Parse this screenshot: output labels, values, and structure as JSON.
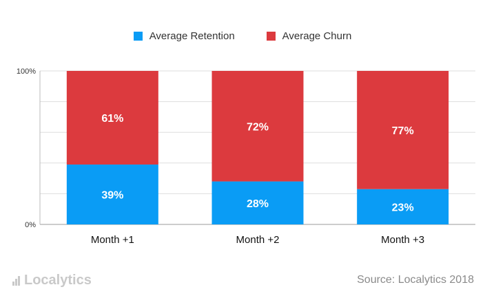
{
  "chart_data": {
    "type": "bar",
    "stacked": true,
    "categories": [
      "Month +1",
      "Month +2",
      "Month +3"
    ],
    "series": [
      {
        "name": "Average Retention",
        "color": "#0a9cf5",
        "values": [
          39,
          28,
          23
        ],
        "labels": [
          "39%",
          "28%",
          "23%"
        ]
      },
      {
        "name": "Average Churn",
        "color": "#dc3a3e",
        "values": [
          61,
          72,
          77
        ],
        "labels": [
          "61%",
          "72%",
          "77%"
        ]
      }
    ],
    "ylim": [
      0,
      100
    ],
    "y_ticks": [
      {
        "value": 100,
        "label": "100%"
      },
      {
        "value": 0,
        "label": "0%"
      }
    ],
    "gridlines": true,
    "legend_position": "top-center"
  },
  "footer": {
    "logo_text": "Localytics",
    "source": "Source: Localytics 2018"
  }
}
